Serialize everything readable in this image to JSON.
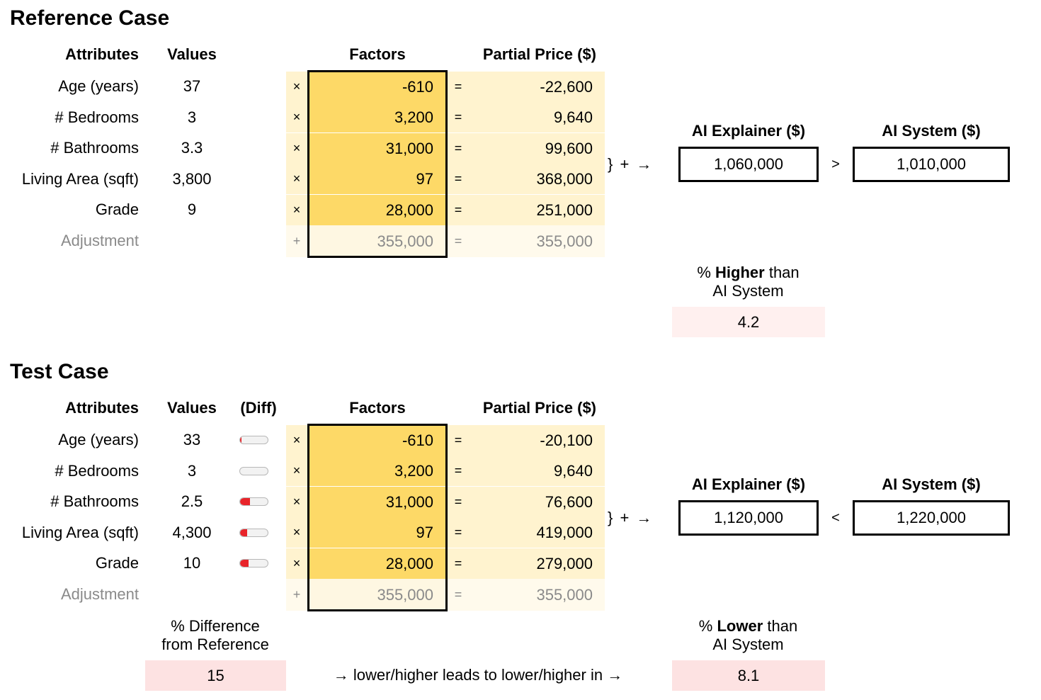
{
  "reference": {
    "title": "Reference Case",
    "headers": {
      "attributes": "Attributes",
      "values": "Values",
      "factors": "Factors",
      "partial": "Partial Price ($)"
    },
    "rows": [
      {
        "attribute": "Age (years)",
        "value": "37",
        "op": "×",
        "factor": "-610",
        "eq": "=",
        "partial": "-22,600"
      },
      {
        "attribute": "# Bedrooms",
        "value": "3",
        "op": "×",
        "factor": "3,200",
        "eq": "=",
        "partial": "9,640"
      },
      {
        "attribute": "# Bathrooms",
        "value": "3.3",
        "op": "×",
        "factor": "31,000",
        "eq": "=",
        "partial": "99,600"
      },
      {
        "attribute": "Living Area (sqft)",
        "value": "3,800",
        "op": "×",
        "factor": "97",
        "eq": "=",
        "partial": "368,000"
      },
      {
        "attribute": "Grade",
        "value": "9",
        "op": "×",
        "factor": "28,000",
        "eq": "=",
        "partial": "251,000"
      }
    ],
    "adjustment": {
      "attribute": "Adjustment",
      "op": "+",
      "factor": "355,000",
      "eq": "=",
      "partial": "355,000"
    },
    "brace": "} + →",
    "explainer_label": "AI Explainer ($)",
    "explainer_value": "1,060,000",
    "comparison": ">",
    "system_label": "AI System ($)",
    "system_value": "1,010,000",
    "pct_label_prefix": "% ",
    "pct_label_bold": "Higher",
    "pct_label_suffix": " than",
    "pct_label_line2": "AI System",
    "pct_value": "4.2"
  },
  "test": {
    "title": "Test Case",
    "headers": {
      "attributes": "Attributes",
      "values": "Values",
      "diff": "(Diff)",
      "factors": "Factors",
      "partial": "Partial Price ($)"
    },
    "rows": [
      {
        "attribute": "Age (years)",
        "value": "33",
        "diff_fraction": 0.05,
        "op": "×",
        "factor": "-610",
        "eq": "=",
        "partial": "-20,100"
      },
      {
        "attribute": "# Bedrooms",
        "value": "3",
        "diff_fraction": 0.0,
        "op": "×",
        "factor": "3,200",
        "eq": "=",
        "partial": "9,640"
      },
      {
        "attribute": "# Bathrooms",
        "value": "2.5",
        "diff_fraction": 0.35,
        "op": "×",
        "factor": "31,000",
        "eq": "=",
        "partial": "76,600"
      },
      {
        "attribute": "Living Area (sqft)",
        "value": "4,300",
        "diff_fraction": 0.25,
        "op": "×",
        "factor": "97",
        "eq": "=",
        "partial": "419,000"
      },
      {
        "attribute": "Grade",
        "value": "10",
        "diff_fraction": 0.3,
        "op": "×",
        "factor": "28,000",
        "eq": "=",
        "partial": "279,000"
      }
    ],
    "adjustment": {
      "attribute": "Adjustment",
      "op": "+",
      "factor": "355,000",
      "eq": "=",
      "partial": "355,000"
    },
    "brace": "} + →",
    "explainer_label": "AI Explainer ($)",
    "explainer_value": "1,120,000",
    "comparison": "<",
    "system_label": "AI System ($)",
    "system_value": "1,220,000",
    "diff_label_line1": "% Difference",
    "diff_label_line2": "from Reference",
    "diff_value": "15",
    "flow_text": "→ lower/higher leads to lower/higher in →",
    "pct_label_prefix": "% ",
    "pct_label_bold": "Lower",
    "pct_label_suffix": " than",
    "pct_label_line2": "AI System",
    "pct_value": "8.1"
  },
  "colors": {
    "factor_fill": "#fdd967",
    "partial_fill": "#fff3cf",
    "pct_box_fill": "#fde2e2",
    "diff_bar_fill": "#e8242a",
    "muted_text": "#8a8a8a"
  }
}
